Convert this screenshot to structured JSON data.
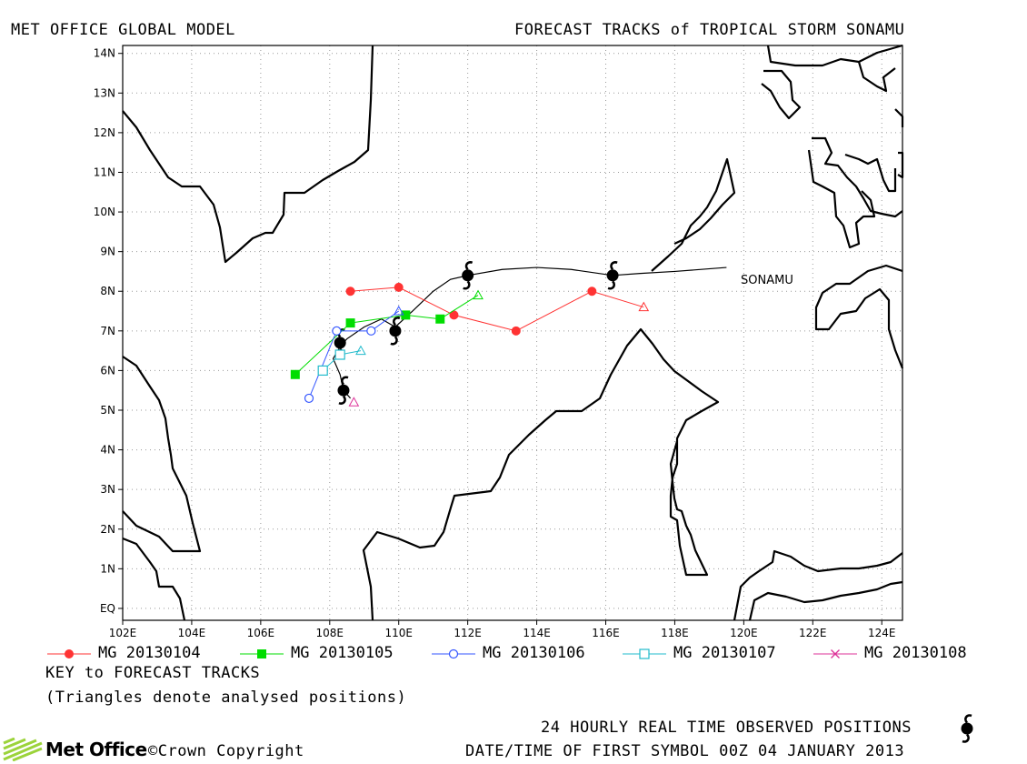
{
  "header": {
    "left_title": "MET OFFICE GLOBAL MODEL",
    "right_title": "FORECAST TRACKS of TROPICAL STORM SONAMU"
  },
  "map": {
    "lat_labels": [
      "14N",
      "13N",
      "12N",
      "11N",
      "10N",
      "9N",
      "8N",
      "7N",
      "6N",
      "5N",
      "4N",
      "3N",
      "2N",
      "1N",
      "EQ"
    ],
    "lon_labels": [
      "102E",
      "104E",
      "106E",
      "108E",
      "110E",
      "112E",
      "114E",
      "116E",
      "118E",
      "120E",
      "122E",
      "124E"
    ],
    "storm_label": "SONAMU",
    "colors": {
      "coast": "#000000",
      "grid": "#9a9a9a",
      "observed": "#000000"
    },
    "storm_symbol": "tropical-storm-icon"
  },
  "chart_data": {
    "type": "scatter",
    "xlabel": "",
    "ylabel": "",
    "xlim": [
      102,
      124.6
    ],
    "ylim": [
      -0.3,
      14.2
    ],
    "x_unit": "degrees E",
    "y_unit": "degrees N",
    "grid": true,
    "observed_track": {
      "name": "SONAMU",
      "line": [
        [
          108.6,
          5.3
        ],
        [
          108.4,
          5.5
        ],
        [
          108.3,
          5.9
        ],
        [
          108.1,
          6.3
        ],
        [
          108.3,
          6.6
        ],
        [
          108.5,
          6.8
        ],
        [
          109.0,
          7.1
        ],
        [
          109.5,
          7.3
        ],
        [
          109.9,
          7.1
        ],
        [
          110.4,
          7.5
        ],
        [
          111.0,
          8.0
        ],
        [
          111.5,
          8.3
        ],
        [
          112.0,
          8.4
        ],
        [
          113.0,
          8.55
        ],
        [
          114.0,
          8.6
        ],
        [
          115.0,
          8.55
        ],
        [
          116.2,
          8.4
        ],
        [
          117.0,
          8.45
        ],
        [
          118.0,
          8.5
        ],
        [
          119.5,
          8.6
        ]
      ],
      "symbols": [
        [
          108.4,
          5.5
        ],
        [
          108.3,
          6.7
        ],
        [
          109.9,
          7.0
        ],
        [
          112.0,
          8.4
        ],
        [
          116.2,
          8.4
        ]
      ]
    },
    "series": [
      {
        "name": "MG 20130104",
        "color": "#ff3333",
        "marker": "circle-filled",
        "points": [
          [
            108.6,
            8.0
          ],
          [
            110.0,
            8.1
          ],
          [
            111.6,
            7.4
          ],
          [
            113.4,
            7.0
          ],
          [
            115.6,
            8.0
          ],
          [
            117.1,
            7.6
          ]
        ],
        "analysed": [
          117.1,
          7.6
        ]
      },
      {
        "name": "MG 20130105",
        "color": "#00dd00",
        "marker": "square-filled",
        "points": [
          [
            107.0,
            5.9
          ],
          [
            108.6,
            7.2
          ],
          [
            110.2,
            7.4
          ],
          [
            111.2,
            7.3
          ],
          [
            112.3,
            7.9
          ]
        ],
        "analysed": [
          112.3,
          7.9
        ]
      },
      {
        "name": "MG 20130106",
        "color": "#3355ff",
        "marker": "circle-open",
        "points": [
          [
            107.4,
            5.3
          ],
          [
            108.2,
            7.0
          ],
          [
            109.2,
            7.0
          ],
          [
            110.0,
            7.5
          ]
        ],
        "analysed": [
          110.0,
          7.5
        ]
      },
      {
        "name": "MG 20130107",
        "color": "#22bbcc",
        "marker": "square-open",
        "points": [
          [
            107.8,
            6.0
          ],
          [
            108.3,
            6.4
          ],
          [
            108.9,
            6.5
          ]
        ],
        "analysed": [
          108.9,
          6.5
        ]
      },
      {
        "name": "MG 20130108",
        "color": "#dd3399",
        "marker": "x",
        "points": [
          [
            108.7,
            5.2
          ]
        ],
        "analysed": [
          108.7,
          5.2
        ]
      }
    ]
  },
  "legend": {
    "items": [
      {
        "label": "MG 20130104",
        "color": "#ff3333",
        "marker": "circle-filled"
      },
      {
        "label": "MG 20130105",
        "color": "#00dd00",
        "marker": "square-filled"
      },
      {
        "label": "MG 20130106",
        "color": "#3355ff",
        "marker": "circle-open"
      },
      {
        "label": "MG 20130107",
        "color": "#22bbcc",
        "marker": "square-open"
      },
      {
        "label": "MG 20130108",
        "color": "#dd3399",
        "marker": "x"
      }
    ],
    "key_title": "KEY to FORECAST TRACKS",
    "key_note": "(Triangles denote analysed positions)"
  },
  "footer": {
    "observed_label": "24 HOURLY REAL TIME OBSERVED POSITIONS",
    "datetime_label": "DATE/TIME OF FIRST SYMBOL 00Z 04 JANUARY 2013",
    "logo_text": "Met Office",
    "copyright": "©Crown Copyright"
  }
}
